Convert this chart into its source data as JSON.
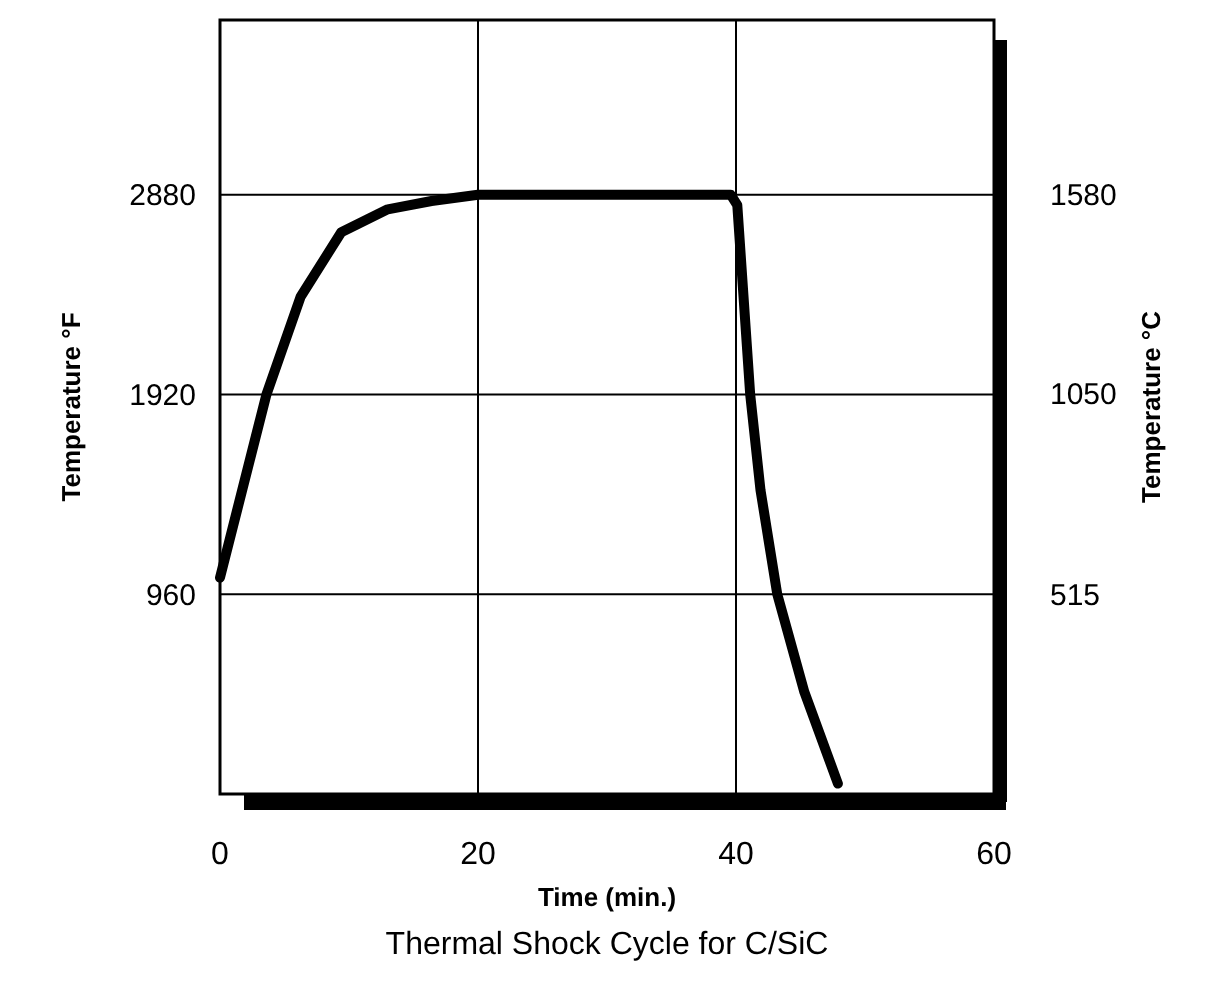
{
  "chart_data": {
    "type": "line",
    "title": "Thermal Shock Cycle for C/SiC",
    "xlabel": "Time (min.)",
    "ylabel": "Temperature °F",
    "y2label": "Temperature °C",
    "x": [
      0,
      3.6,
      6.25,
      9.4,
      13,
      16.4,
      20,
      39.6,
      40.1,
      41.1,
      41.9,
      43.2,
      45.3,
      47.9
    ],
    "series": [
      {
        "color": "#000000",
        "values": [
          1040,
          1920,
          2390,
          2700,
          2810,
          2850,
          2880,
          2880,
          2830,
          1920,
          1460,
          960,
          490,
          50
        ]
      }
    ],
    "xlim": [
      0,
      60
    ],
    "xticks": [
      0,
      20,
      40,
      60
    ],
    "ylim": [
      0,
      3720
    ],
    "yticks": [
      960,
      1920,
      2880
    ],
    "y2lim": [
      -17.5,
      2046
    ],
    "y2ticks": [
      515,
      1050,
      1580
    ],
    "grid": true,
    "marker": "none",
    "line_style": "solid"
  }
}
